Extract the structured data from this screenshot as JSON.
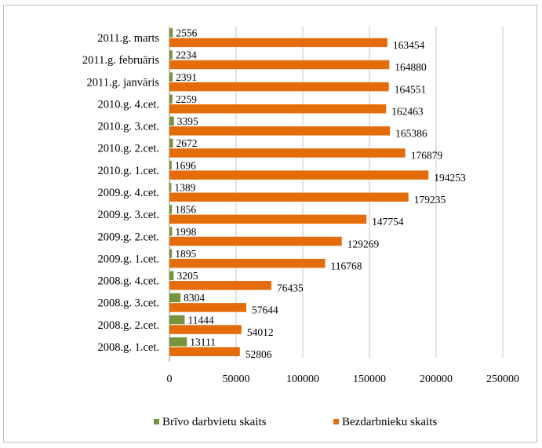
{
  "chart_data": {
    "type": "bar",
    "orientation": "horizontal",
    "categories": [
      "2011.g. marts",
      "2011.g. februāris",
      "2011.g. janvāris",
      "2010.g. 4.cet.",
      "2010.g. 3.cet.",
      "2010.g. 2.cet.",
      "2010.g. 1.cet.",
      "2009.g. 4.cet.",
      "2009.g. 3.cet.",
      "2009.g. 2.cet.",
      "2009.g. 1.cet.",
      "2008.g. 4.cet.",
      "2008.g. 3.cet.",
      "2008.g. 2.cet.",
      "2008.g. 1.cet."
    ],
    "series": [
      {
        "name": "Brīvo darbvietu skaits",
        "color": "#77933c",
        "values": [
          2556,
          2234,
          2391,
          2259,
          3395,
          2672,
          1696,
          1389,
          1856,
          1998,
          1895,
          3205,
          8304,
          11444,
          13111
        ]
      },
      {
        "name": "Bezdarbnieku skaits",
        "color": "#e46c0a",
        "values": [
          163454,
          164880,
          164551,
          162463,
          165386,
          176879,
          194253,
          179235,
          147754,
          129269,
          116768,
          76435,
          57644,
          54012,
          52806
        ]
      }
    ],
    "xticks": [
      "0",
      "50000",
      "100000",
      "150000",
      "200000",
      "250000"
    ],
    "xlim": [
      0,
      250000
    ],
    "grid": true,
    "legend": "bottom"
  }
}
